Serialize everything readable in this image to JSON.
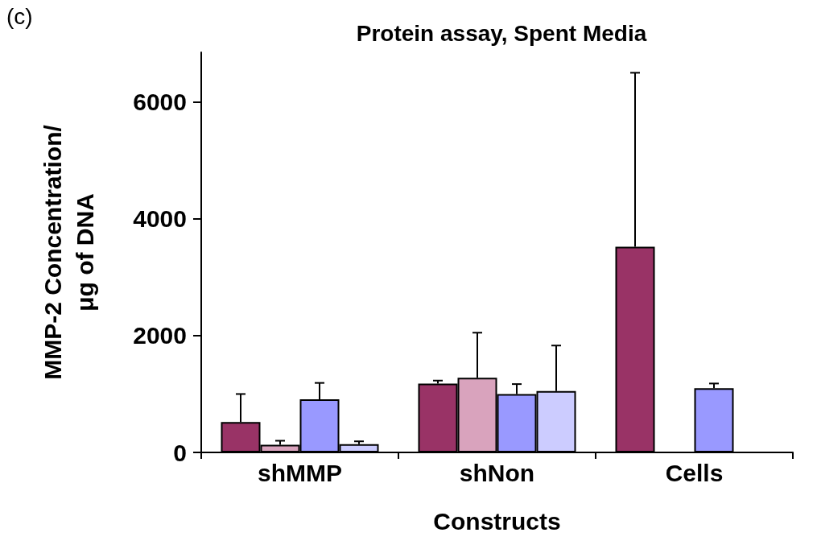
{
  "chart_data": {
    "type": "bar",
    "title": "Protein assay, Spent Media",
    "xlabel": "Constructs",
    "ylabel": "MMP-2 Concentration/\nμg of DNA",
    "annotations": [
      "(c)"
    ],
    "categories": [
      "shMMP",
      "shNon",
      "Cells"
    ],
    "series": [
      {
        "color": "#993366",
        "values": [
          520,
          1180,
          3520
        ],
        "errors": [
          [
            520,
            1000
          ],
          [
            1180,
            1230
          ],
          [
            3520,
            6500
          ]
        ]
      },
      {
        "color": "#d9a3bd",
        "values": [
          130,
          1280,
          null
        ],
        "errors": [
          [
            130,
            200
          ],
          [
            1280,
            2050
          ],
          null
        ]
      },
      {
        "color": "#9999ff",
        "values": [
          910,
          1000,
          1100
        ],
        "errors": [
          [
            910,
            1190
          ],
          [
            1000,
            1170
          ],
          [
            1100,
            1180
          ]
        ]
      },
      {
        "color": "#ccccff",
        "values": [
          140,
          1050,
          null
        ],
        "errors": [
          [
            140,
            190
          ],
          [
            1050,
            1830
          ],
          null
        ]
      }
    ],
    "ylim": [
      0,
      6850
    ],
    "yticks": [
      0,
      2000,
      4000,
      6000
    ],
    "grid": false
  }
}
